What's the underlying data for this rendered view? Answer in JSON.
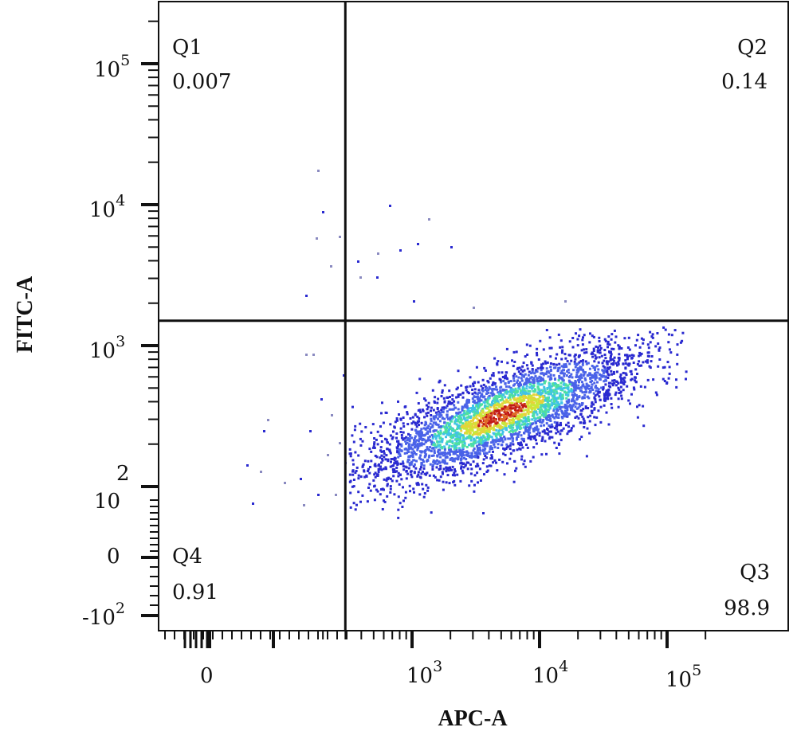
{
  "chart_data": {
    "type": "scatter",
    "xlabel": "APC-A",
    "ylabel": "FITC-A",
    "x_scale": "biexponential",
    "y_scale": "biexponential",
    "x_ticks": [
      {
        "label_base": "0",
        "label_exp": ""
      },
      {
        "label_base": "10",
        "label_exp": "3"
      },
      {
        "label_base": "10",
        "label_exp": "4"
      },
      {
        "label_base": "10",
        "label_exp": "5"
      }
    ],
    "y_ticks": [
      {
        "label_base": "10",
        "label_exp": "5"
      },
      {
        "label_base": "10",
        "label_exp": "4"
      },
      {
        "label_base": "10",
        "label_exp": "3"
      },
      {
        "label_base": "10",
        "label_exp": "2"
      },
      {
        "label_base": "0",
        "label_exp": ""
      },
      {
        "label_base": "-10",
        "label_exp": "2"
      }
    ],
    "gate": {
      "x": 300,
      "y": 1500
    },
    "quadrants": [
      {
        "name": "Q1",
        "value": "0.007",
        "position": "top-left"
      },
      {
        "name": "Q2",
        "value": "0.14",
        "position": "top-right"
      },
      {
        "name": "Q3",
        "value": "98.9",
        "position": "bottom-right"
      },
      {
        "name": "Q4",
        "value": "0.91",
        "position": "bottom-left"
      }
    ],
    "population": {
      "center_apc": 5000,
      "center_fitc": 330,
      "apc_range": [
        300,
        70000
      ],
      "fitc_range": [
        60,
        1500
      ],
      "density_colors": [
        "#2a2ad0",
        "#4a62e8",
        "#3fc2e8",
        "#4ee0a0",
        "#c8e83a",
        "#e8d03a",
        "#e06a28",
        "#c01818"
      ]
    },
    "grid": false,
    "legend": "none"
  }
}
